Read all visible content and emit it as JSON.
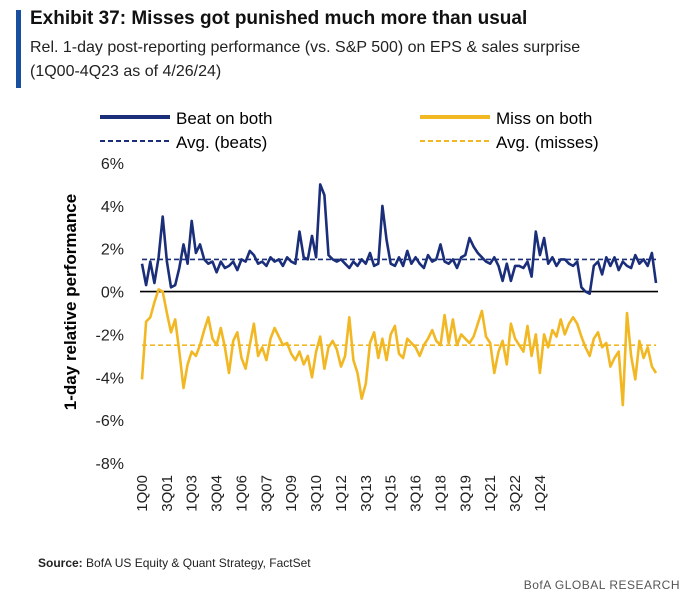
{
  "title": "Exhibit 37: Misses got punished much more than usual",
  "subtitle_line1": "Rel. 1-day post-reporting performance (vs. S&P 500) on EPS & sales surprise",
  "subtitle_line2": "(1Q00-4Q23 as of 4/26/24)",
  "source_label": "Source:",
  "source_text": "BofA US Equity & Quant Strategy, FactSet",
  "brand": "BofA GLOBAL RESEARCH",
  "colors": {
    "beat": "#1a2e7a",
    "miss": "#f2b824",
    "zero_line": "#000000"
  },
  "chart_data": {
    "type": "line",
    "ylabel": "1-day relative performance",
    "ylim": [
      -8,
      6
    ],
    "yticks": [
      6,
      4,
      2,
      0,
      -2,
      -4,
      -6,
      -8
    ],
    "ytick_labels": [
      "6%",
      "4%",
      "2%",
      "0%",
      "-2%",
      "-4%",
      "-6%",
      "-8%"
    ],
    "xtick_labels": [
      "1Q00",
      "3Q01",
      "1Q03",
      "3Q04",
      "1Q06",
      "3Q07",
      "1Q09",
      "3Q10",
      "1Q12",
      "3Q13",
      "1Q15",
      "3Q16",
      "1Q18",
      "3Q19",
      "1Q21",
      "3Q22",
      "1Q24"
    ],
    "xtick_every": 6,
    "legend": {
      "placement": "top",
      "entries": [
        {
          "label": "Beat on both",
          "style": "solid",
          "series": "beat"
        },
        {
          "label": "Miss on both",
          "style": "solid",
          "series": "miss"
        },
        {
          "label": "Avg. (beats)",
          "style": "dashed",
          "series": "beat"
        },
        {
          "label": "Avg. (misses)",
          "style": "dashed",
          "series": "miss"
        }
      ]
    },
    "averages": {
      "beats": 1.5,
      "misses": -2.5
    },
    "series": [
      {
        "name": "Beat on both",
        "values": [
          1.3,
          0.3,
          1.4,
          0.4,
          1.6,
          3.5,
          1.4,
          0.2,
          0.3,
          1.1,
          2.2,
          1.3,
          3.3,
          1.8,
          2.2,
          1.5,
          1.3,
          1.4,
          0.9,
          1.4,
          1.1,
          1.2,
          1.4,
          1.0,
          1.5,
          1.4,
          1.9,
          1.7,
          1.3,
          1.4,
          1.2,
          1.6,
          1.4,
          1.5,
          1.2,
          1.6,
          1.4,
          1.3,
          2.8,
          1.6,
          1.5,
          2.6,
          1.6,
          5.0,
          4.5,
          1.7,
          1.5,
          1.4,
          1.5,
          1.3,
          1.1,
          1.4,
          1.2,
          1.5,
          1.3,
          1.8,
          1.2,
          1.3,
          4.0,
          2.4,
          1.3,
          1.2,
          1.6,
          1.2,
          1.9,
          1.3,
          1.6,
          1.3,
          1.1,
          1.7,
          1.4,
          1.5,
          2.2,
          1.4,
          1.3,
          1.5,
          1.1,
          1.6,
          1.7,
          2.5,
          2.1,
          1.8,
          1.6,
          1.4,
          1.3,
          1.6,
          1.2,
          0.5,
          1.3,
          0.5,
          1.2,
          1.2,
          1.1,
          1.4,
          0.7,
          2.8,
          1.7,
          2.5,
          1.3,
          1.6,
          1.2,
          1.5,
          1.5,
          1.3,
          1.2,
          1.4,
          0.2,
          0.0,
          -0.1,
          1.2,
          1.4,
          0.8,
          1.6,
          1.2,
          1.6,
          1.0,
          1.4,
          1.2,
          1.1,
          1.7,
          1.3,
          1.5,
          1.2,
          1.8,
          0.4
        ]
      },
      {
        "name": "Miss on both",
        "values": [
          -4.1,
          -1.4,
          -1.2,
          -0.5,
          0.1,
          0.0,
          -1.0,
          -1.9,
          -1.3,
          -2.8,
          -4.5,
          -3.4,
          -2.8,
          -3.0,
          -2.5,
          -1.8,
          -1.2,
          -2.2,
          -2.5,
          -1.7,
          -2.6,
          -3.8,
          -2.3,
          -1.9,
          -3.1,
          -3.6,
          -2.5,
          -1.5,
          -3.0,
          -2.6,
          -3.2,
          -2.2,
          -1.7,
          -2.1,
          -2.5,
          -2.4,
          -2.9,
          -3.2,
          -2.8,
          -3.4,
          -3.0,
          -4.0,
          -2.8,
          -2.1,
          -3.6,
          -2.6,
          -2.3,
          -2.7,
          -3.5,
          -3.0,
          -1.2,
          -3.2,
          -3.8,
          -5.0,
          -4.3,
          -2.4,
          -1.9,
          -3.1,
          -2.2,
          -3.2,
          -2.0,
          -1.6,
          -2.9,
          -3.1,
          -2.2,
          -2.4,
          -2.6,
          -3.0,
          -2.5,
          -2.2,
          -1.8,
          -2.3,
          -2.5,
          -1.1,
          -2.4,
          -1.3,
          -2.5,
          -2.0,
          -2.2,
          -2.4,
          -2.1,
          -1.5,
          -0.9,
          -2.1,
          -2.4,
          -3.8,
          -2.8,
          -2.3,
          -3.4,
          -1.5,
          -2.2,
          -2.5,
          -2.8,
          -1.6,
          -3.0,
          -2.0,
          -3.8,
          -2.0,
          -2.6,
          -1.8,
          -2.1,
          -1.3,
          -2.0,
          -1.5,
          -1.2,
          -1.5,
          -2.1,
          -2.6,
          -3.0,
          -2.2,
          -1.9,
          -2.6,
          -2.4,
          -3.5,
          -3.1,
          -2.8,
          -5.3,
          -1.0,
          -3.0,
          -4.1,
          -2.3,
          -3.1,
          -2.6,
          -3.5,
          -3.8
        ]
      }
    ]
  }
}
